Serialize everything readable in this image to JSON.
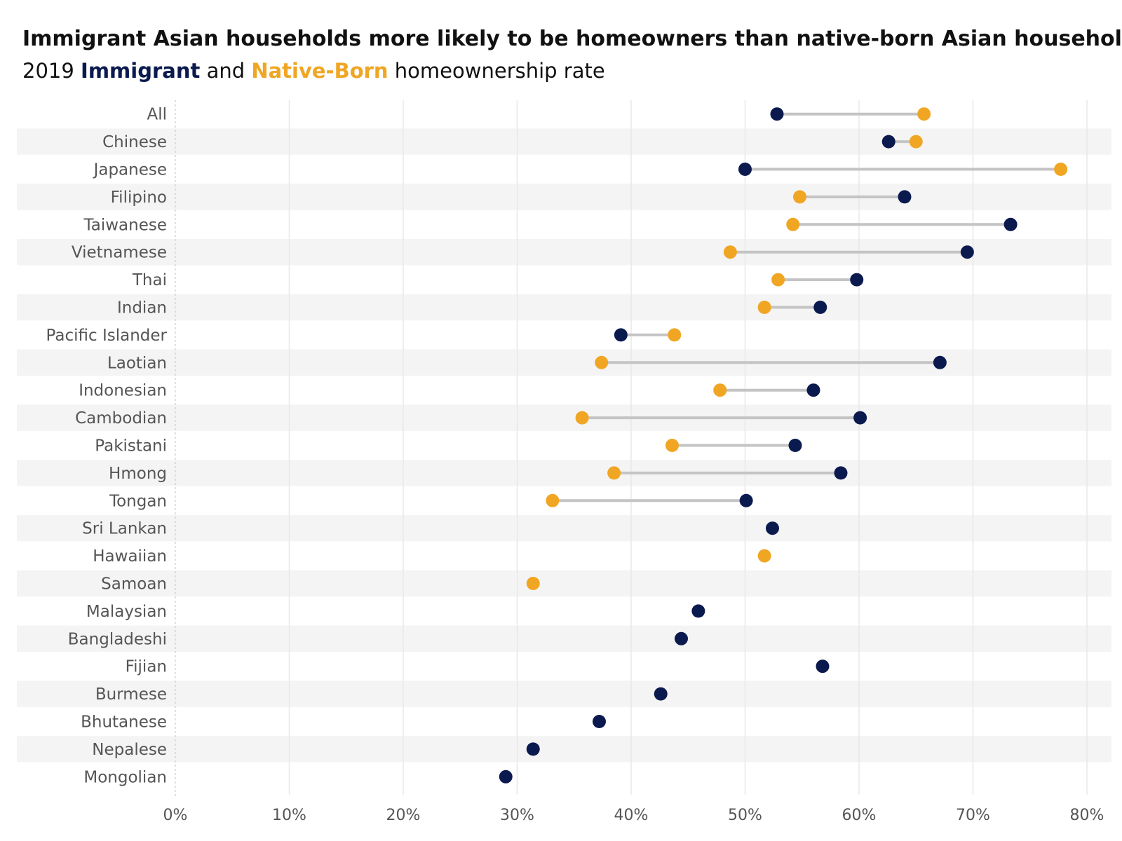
{
  "title": "Immigrant Asian households more likely to be homeowners than native-born Asian households",
  "subtitle": {
    "prefix": "2019",
    "immigrant_label": "Immigrant",
    "and": "and",
    "native_label": "Native-Born",
    "suffix": "homeownership rate"
  },
  "colors": {
    "immigrant": "#0b1a4e",
    "native": "#f0a623",
    "connector": "#c4c4c4",
    "band": "#f4f4f4",
    "grid": "#e8e8e8"
  },
  "chart_data": {
    "type": "dumbbell",
    "title": "Immigrant Asian households more likely to be homeowners than native-born Asian households",
    "subtitle": "2019 Immigrant and Native-Born homeownership rate",
    "xlim": [
      0,
      80
    ],
    "x_ticks": [
      "0%",
      "10%",
      "20%",
      "30%",
      "40%",
      "50%",
      "60%",
      "70%",
      "80%"
    ],
    "x_tick_values": [
      0,
      10,
      20,
      30,
      40,
      50,
      60,
      70,
      80
    ],
    "grid": true,
    "series": [
      {
        "name": "Immigrant",
        "color": "#0b1a4e"
      },
      {
        "name": "Native-Born",
        "color": "#f0a623"
      }
    ],
    "categories": [
      "All",
      "Chinese",
      "Japanese",
      "Filipino",
      "Taiwanese",
      "Vietnamese",
      "Thai",
      "Indian",
      "Pacific Islander",
      "Laotian",
      "Indonesian",
      "Cambodian",
      "Pakistani",
      "Hmong",
      "Tongan",
      "Sri Lankan",
      "Hawaiian",
      "Samoan",
      "Malaysian",
      "Bangladeshi",
      "Fijian",
      "Burmese",
      "Bhutanese",
      "Nepalese",
      "Mongolian"
    ],
    "immigrant": [
      52.8,
      62.6,
      50.0,
      64.0,
      73.3,
      69.5,
      59.8,
      56.6,
      39.1,
      67.1,
      56.0,
      60.1,
      54.4,
      58.4,
      50.1,
      52.4,
      null,
      null,
      45.9,
      44.4,
      56.8,
      42.6,
      37.2,
      31.4,
      29.0
    ],
    "native": [
      65.7,
      65.0,
      77.7,
      54.8,
      54.2,
      48.7,
      52.9,
      51.7,
      43.8,
      37.4,
      47.8,
      35.7,
      43.6,
      38.5,
      33.1,
      null,
      51.7,
      31.4,
      null,
      null,
      null,
      null,
      null,
      null,
      null
    ]
  }
}
